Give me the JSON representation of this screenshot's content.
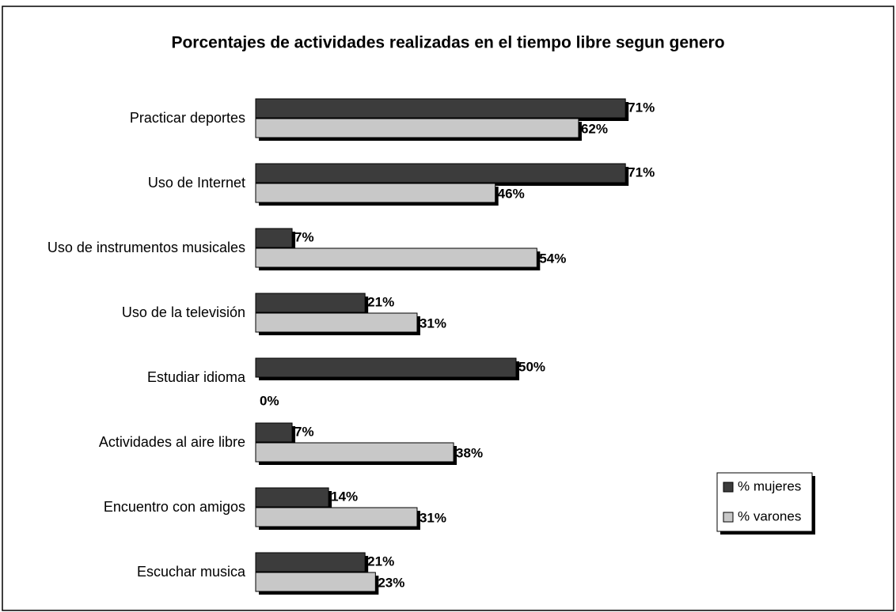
{
  "chart_data": {
    "type": "bar",
    "orientation": "horizontal",
    "title": "Porcentajes de actividades realizadas en el tiempo libre segun genero",
    "categories": [
      "Practicar deportes",
      "Uso de Internet",
      "Uso de instrumentos musicales",
      "Uso de la televisión",
      "Estudiar idioma",
      "Actividades al aire libre",
      "Encuentro con amigos",
      "Escuchar musica"
    ],
    "series": [
      {
        "name": "% mujeres",
        "color": "#3c3c3c",
        "values": [
          71,
          71,
          7,
          21,
          50,
          7,
          14,
          21
        ],
        "value_labels": [
          "71%",
          "71%",
          "7%",
          "21%",
          "50%",
          "7%",
          "14%",
          "21%"
        ]
      },
      {
        "name": "% varones",
        "color": "#c8c8c8",
        "values": [
          62,
          46,
          54,
          31,
          0,
          38,
          31,
          23
        ],
        "value_labels": [
          "62%",
          "46%",
          "54%",
          "31%",
          "0%",
          "38%",
          "31%",
          "23%"
        ]
      }
    ],
    "legend": "right"
  }
}
